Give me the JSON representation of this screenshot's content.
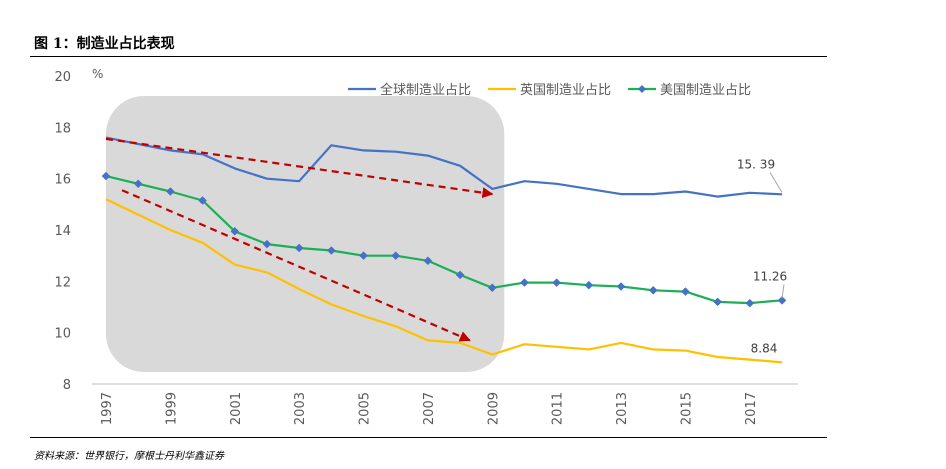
{
  "figure": {
    "title": "图 1：制造业占比表现",
    "source": "资料来源：世界银行，摩根士丹利华鑫证券"
  },
  "chart_data": {
    "type": "line",
    "ylabel": "%",
    "ylim": [
      8,
      20
    ],
    "yticks": [
      20,
      18,
      16,
      14,
      12,
      10,
      8
    ],
    "xlim": [
      1997,
      2018
    ],
    "xticks": [
      "1997",
      "1999",
      "2001",
      "2003",
      "2005",
      "2007",
      "2009",
      "2011",
      "2013",
      "2015",
      "2017"
    ],
    "grid": false,
    "legend_position": "top-right",
    "x": [
      1997,
      1998,
      1999,
      2000,
      2001,
      2002,
      2003,
      2004,
      2005,
      2006,
      2007,
      2008,
      2009,
      2010,
      2011,
      2012,
      2013,
      2014,
      2015,
      2016,
      2017,
      2018
    ],
    "series": [
      {
        "name": "全球制造业占比",
        "color": "#4472C4",
        "marker": "none",
        "values": [
          17.6,
          17.35,
          17.1,
          16.95,
          16.4,
          16.0,
          15.9,
          17.3,
          17.1,
          17.05,
          16.9,
          16.5,
          15.6,
          15.9,
          15.8,
          15.6,
          15.4,
          15.4,
          15.5,
          15.3,
          15.45,
          15.39
        ]
      },
      {
        "name": "英国制造业占比",
        "color": "#FFC000",
        "marker": "none",
        "values": [
          15.2,
          14.6,
          14.0,
          13.5,
          12.65,
          12.35,
          11.7,
          11.1,
          10.65,
          10.25,
          9.7,
          9.6,
          9.15,
          9.55,
          9.45,
          9.35,
          9.6,
          9.35,
          9.3,
          9.05,
          8.95,
          8.84
        ]
      },
      {
        "name": "美国制造业占比",
        "color": "#1BAF56",
        "marker": "diamond",
        "marker_color": "#4472C4",
        "values": [
          16.1,
          15.8,
          15.5,
          15.15,
          13.95,
          13.45,
          13.3,
          13.2,
          13.0,
          13.0,
          12.8,
          12.25,
          11.75,
          11.95,
          11.95,
          11.85,
          11.8,
          11.65,
          11.6,
          11.2,
          11.15,
          11.26
        ]
      }
    ],
    "data_labels": [
      {
        "series": 0,
        "text": "15. 39"
      },
      {
        "series": 2,
        "text": "11.26"
      },
      {
        "series": 1,
        "text": "8.84"
      }
    ],
    "annotations": {
      "highlight_region_color": "#D9D9D9",
      "highlight_span": [
        1997,
        2009
      ],
      "trend_arrow_color": "#C00000",
      "trend_arrows": [
        {
          "from": [
            1997,
            17.55
          ],
          "to": [
            2009,
            15.4
          ]
        },
        {
          "from": [
            1997.5,
            15.55
          ],
          "to": [
            2008.3,
            9.7
          ]
        }
      ]
    }
  }
}
